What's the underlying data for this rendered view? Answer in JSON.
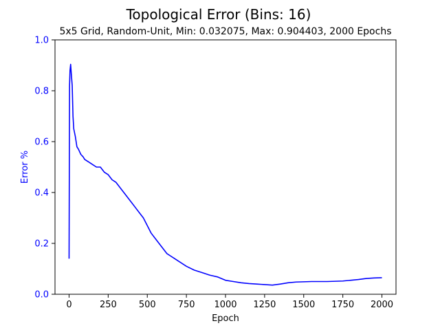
{
  "chart_data": {
    "type": "line",
    "title": "Topological Error (Bins: 16)",
    "subtitle": "5x5 Grid, Random-Unit, Min: 0.032075, Max: 0.904403, 2000 Epochs",
    "xlabel": "Epoch",
    "ylabel": "Error %",
    "xlim": [
      -90,
      2090
    ],
    "ylim": [
      0,
      1.0
    ],
    "xticks": [
      "0",
      "250",
      "500",
      "750",
      "1000",
      "1250",
      "1500",
      "1750",
      "2000"
    ],
    "yticks": [
      "0.0",
      "0.2",
      "0.4",
      "0.6",
      "0.8",
      "1.0"
    ],
    "grid": false,
    "series_color": "#0000ff",
    "y_axis_color": "#0000ff",
    "series": [
      {
        "x": [
          0,
          3,
          6,
          10,
          15,
          20,
          25,
          30,
          40,
          50,
          60,
          75,
          90,
          100,
          125,
          150,
          175,
          200,
          225,
          250,
          275,
          300,
          325,
          350,
          375,
          400,
          425,
          450,
          475,
          500,
          525,
          550,
          575,
          600,
          625,
          650,
          675,
          700,
          750,
          800,
          850,
          900,
          950,
          1000,
          1050,
          1100,
          1150,
          1200,
          1250,
          1300,
          1350,
          1400,
          1450,
          1500,
          1550,
          1600,
          1650,
          1700,
          1750,
          1800,
          1850,
          1900,
          1950,
          2000
        ],
        "y": [
          0.14,
          0.82,
          0.88,
          0.904,
          0.86,
          0.82,
          0.7,
          0.65,
          0.62,
          0.58,
          0.57,
          0.55,
          0.54,
          0.53,
          0.52,
          0.51,
          0.5,
          0.5,
          0.48,
          0.47,
          0.45,
          0.44,
          0.42,
          0.4,
          0.38,
          0.36,
          0.34,
          0.32,
          0.3,
          0.27,
          0.24,
          0.22,
          0.2,
          0.18,
          0.16,
          0.15,
          0.14,
          0.13,
          0.11,
          0.095,
          0.085,
          0.075,
          0.068,
          0.055,
          0.05,
          0.045,
          0.042,
          0.04,
          0.038,
          0.036,
          0.04,
          0.045,
          0.048,
          0.049,
          0.05,
          0.05,
          0.05,
          0.051,
          0.052,
          0.055,
          0.058,
          0.062,
          0.064,
          0.065
        ]
      }
    ]
  }
}
